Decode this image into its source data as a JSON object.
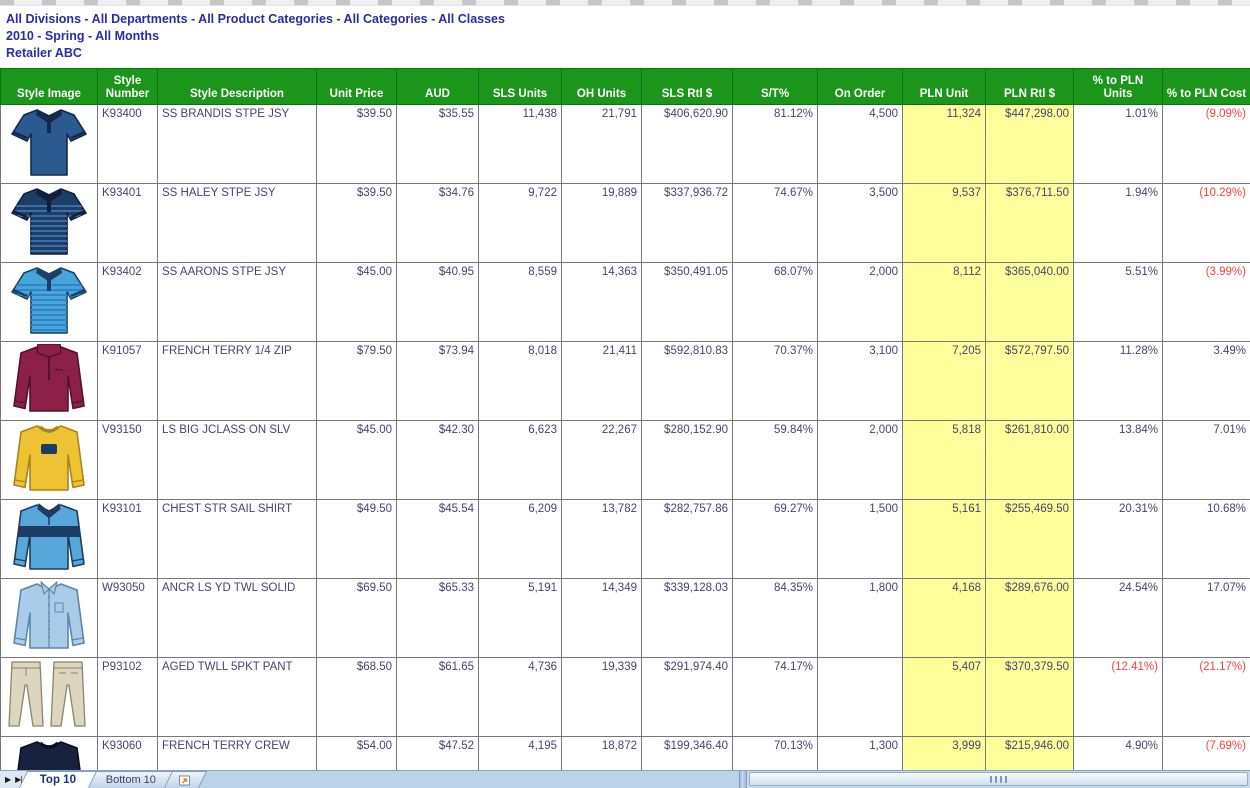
{
  "header": {
    "line1": "All Divisions - All Departments - All Product Categories - All Categories - All Classes",
    "line2": "2010 - Spring - All Months",
    "line3": "Retailer ABC"
  },
  "table": {
    "columns": [
      "Style Image",
      "Style Number",
      "Style Description",
      "Unit Price",
      "AUD",
      "SLS Units",
      "OH Units",
      "SLS Rtl $",
      "S/T%",
      "On Order",
      "PLN Unit",
      "PLN Rtl $",
      "% to PLN Units",
      "% to PLN Cost"
    ],
    "rows": [
      {
        "style_number": "K93400",
        "description": "SS BRANDIS STPE JSY",
        "unit_price": "$39.50",
        "aud": "$35.55",
        "sls_units": "11,438",
        "oh_units": "21,791",
        "sls_rtl_dollars": "$406,620.90",
        "st_pct": "81.12%",
        "on_order": "4,500",
        "pln_unit": "11,324",
        "pln_rtl_dollars": "$447,298.00",
        "pct_to_pln_units": "1.01%",
        "pct_to_pln_cost": "(9.09%)",
        "image": {
          "name": "navy-polo-shirt",
          "type": "polo",
          "body": "#2a5a90",
          "trim": "#14294e",
          "stripe": ""
        }
      },
      {
        "style_number": "K93401",
        "description": "SS HALEY STPE JSY",
        "unit_price": "$39.50",
        "aud": "$34.76",
        "sls_units": "9,722",
        "oh_units": "19,889",
        "sls_rtl_dollars": "$337,936.72",
        "st_pct": "74.67%",
        "on_order": "3,500",
        "pln_unit": "9,537",
        "pln_rtl_dollars": "$376,711.50",
        "pct_to_pln_units": "1.94%",
        "pct_to_pln_cost": "(10.29%)",
        "image": {
          "name": "navy-striped-polo-shirt",
          "type": "polo",
          "body": "#1d3e66",
          "trim": "#101f3c",
          "stripe": "#3c6ea8"
        }
      },
      {
        "style_number": "K93402",
        "description": "SS AARONS STPE JSY",
        "unit_price": "$45.00",
        "aud": "$40.95",
        "sls_units": "8,559",
        "oh_units": "14,363",
        "sls_rtl_dollars": "$350,491.05",
        "st_pct": "68.07%",
        "on_order": "2,000",
        "pln_unit": "8,112",
        "pln_rtl_dollars": "$365,040.00",
        "pct_to_pln_units": "5.51%",
        "pct_to_pln_cost": "(3.99%)",
        "image": {
          "name": "light-blue-striped-polo-shirt",
          "type": "polo",
          "body": "#49a4dc",
          "trim": "#1c3f68",
          "stripe": "#2f86c2"
        }
      },
      {
        "style_number": "K91057",
        "description": "FRENCH TERRY 1/4 ZIP",
        "unit_price": "$79.50",
        "aud": "$73.94",
        "sls_units": "8,018",
        "oh_units": "21,411",
        "sls_rtl_dollars": "$592,810.83",
        "st_pct": "70.37%",
        "on_order": "3,100",
        "pln_unit": "7,205",
        "pln_rtl_dollars": "$572,797.50",
        "pct_to_pln_units": "11.28%",
        "pct_to_pln_cost": "3.49%",
        "image": {
          "name": "maroon-quarter-zip-pullover",
          "type": "quarterzip",
          "body": "#8d2046",
          "trim": "#55122b",
          "stripe": ""
        }
      },
      {
        "style_number": "V93150",
        "description": "LS BIG JCLASS ON SLV",
        "unit_price": "$45.00",
        "aud": "$42.30",
        "sls_units": "6,623",
        "oh_units": "22,267",
        "sls_rtl_dollars": "$280,152.90",
        "st_pct": "59.84%",
        "on_order": "2,000",
        "pln_unit": "5,818",
        "pln_rtl_dollars": "$261,810.00",
        "pct_to_pln_units": "13.84%",
        "pct_to_pln_cost": "7.01%",
        "image": {
          "name": "gold-crewneck-sweatshirt",
          "type": "sweatshirt",
          "body": "#eec233",
          "trim": "#a8841a",
          "accent": "#1c3c68",
          "stripe": ""
        }
      },
      {
        "style_number": "K93101",
        "description": "CHEST STR SAIL SHIRT",
        "unit_price": "$49.50",
        "aud": "$45.54",
        "sls_units": "6,209",
        "oh_units": "13,782",
        "sls_rtl_dollars": "$282,757.86",
        "st_pct": "69.27%",
        "on_order": "1,500",
        "pln_unit": "5,161",
        "pln_rtl_dollars": "$255,469.50",
        "pct_to_pln_units": "20.31%",
        "pct_to_pln_cost": "10.68%",
        "image": {
          "name": "light-blue-rugby-shirt-navy-chest-stripe",
          "type": "rugby",
          "body": "#57a7da",
          "trim": "#1d3c64",
          "accent": "#1d3c64",
          "stripe": ""
        }
      },
      {
        "style_number": "W93050",
        "description": "ANCR LS YD TWL SOLID",
        "unit_price": "$69.50",
        "aud": "$65.33",
        "sls_units": "5,191",
        "oh_units": "14,349",
        "sls_rtl_dollars": "$339,128.03",
        "st_pct": "84.35%",
        "on_order": "1,800",
        "pln_unit": "4,168",
        "pln_rtl_dollars": "$289,676.00",
        "pct_to_pln_units": "24.54%",
        "pct_to_pln_cost": "17.07%",
        "image": {
          "name": "light-blue-button-down-shirt",
          "type": "buttonshirt",
          "body": "#a9cce9",
          "trim": "#5c86ad",
          "stripe": ""
        }
      },
      {
        "style_number": "P93102",
        "description": "AGED TWLL 5PKT PANT",
        "unit_price": "$68.50",
        "aud": "$61.65",
        "sls_units": "4,736",
        "oh_units": "19,339",
        "sls_rtl_dollars": "$291,974.40",
        "st_pct": "74.17%",
        "on_order": "",
        "pln_unit": "5,407",
        "pln_rtl_dollars": "$370,379.50",
        "pct_to_pln_units": "(12.41%)",
        "pct_to_pln_cost": "(21.17%)",
        "image": {
          "name": "khaki-pants-pair",
          "type": "pants",
          "body": "#ddd6bf",
          "trim": "#8c8468",
          "stripe": ""
        }
      },
      {
        "style_number": "K93060",
        "description": "FRENCH TERRY CREW",
        "unit_price": "$54.00",
        "aud": "$47.52",
        "sls_units": "4,195",
        "oh_units": "18,872",
        "sls_rtl_dollars": "$199,346.40",
        "st_pct": "70.13%",
        "on_order": "1,300",
        "pln_unit": "3,999",
        "pln_rtl_dollars": "$215,946.00",
        "pct_to_pln_units": "4.90%",
        "pct_to_pln_cost": "(7.69%)",
        "image": {
          "name": "navy-crewneck-sweater",
          "type": "crew",
          "body": "#18223f",
          "trim": "#090f20",
          "stripe": ""
        }
      }
    ]
  },
  "sheet_bar": {
    "tabs": [
      "Top 10",
      "Bottom 10"
    ],
    "nav_next_icon": "▶",
    "nav_last_icon": "▶|"
  },
  "colors": {
    "header_green": "#1b961b",
    "highlight_yellow": "#ffff9c",
    "negative_red": "#ff4040",
    "title_blue": "#2b2ba8"
  }
}
